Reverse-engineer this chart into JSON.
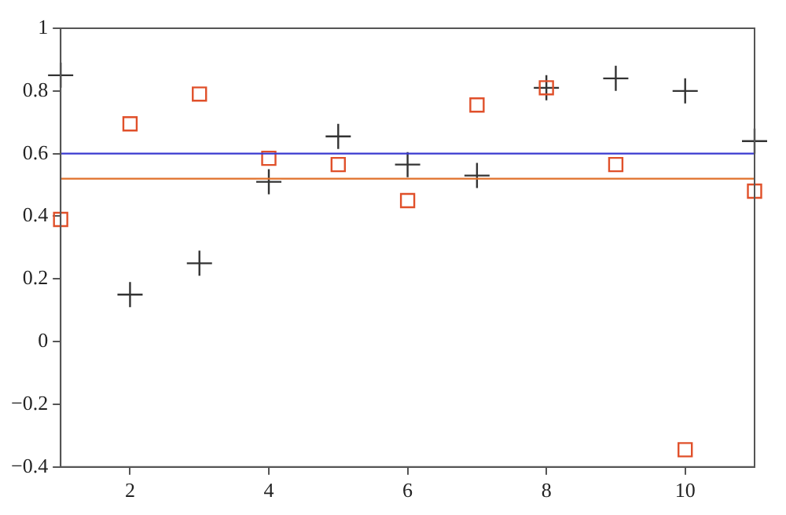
{
  "chart_data": {
    "type": "scatter",
    "x": [
      1,
      2,
      3,
      4,
      5,
      6,
      7,
      8,
      9,
      10,
      11
    ],
    "series": [
      {
        "color": "#333333",
        "marker": "cross",
        "values": [
          0.85,
          0.15,
          0.25,
          0.51,
          0.655,
          0.565,
          0.53,
          0.81,
          0.84,
          0.8,
          0.64
        ]
      },
      {
        "color": "#e0502a",
        "marker": "square",
        "values": [
          0.39,
          0.695,
          0.79,
          0.585,
          0.565,
          0.45,
          0.755,
          0.81,
          0.565,
          -0.345,
          0.48
        ]
      }
    ],
    "ref_lines": [
      {
        "axis": "y",
        "value": 0.6,
        "color": "#3a3ad0"
      },
      {
        "axis": "y",
        "value": 0.52,
        "color": "#e0702a"
      }
    ],
    "xlim": [
      1,
      11
    ],
    "xticks": [
      2,
      4,
      6,
      8,
      10
    ],
    "ylim": [
      -0.4,
      1
    ],
    "yticks": [
      -0.4,
      -0.2,
      0,
      0.2,
      0.4,
      0.6,
      0.8,
      1
    ],
    "grid": false,
    "legend": false
  }
}
